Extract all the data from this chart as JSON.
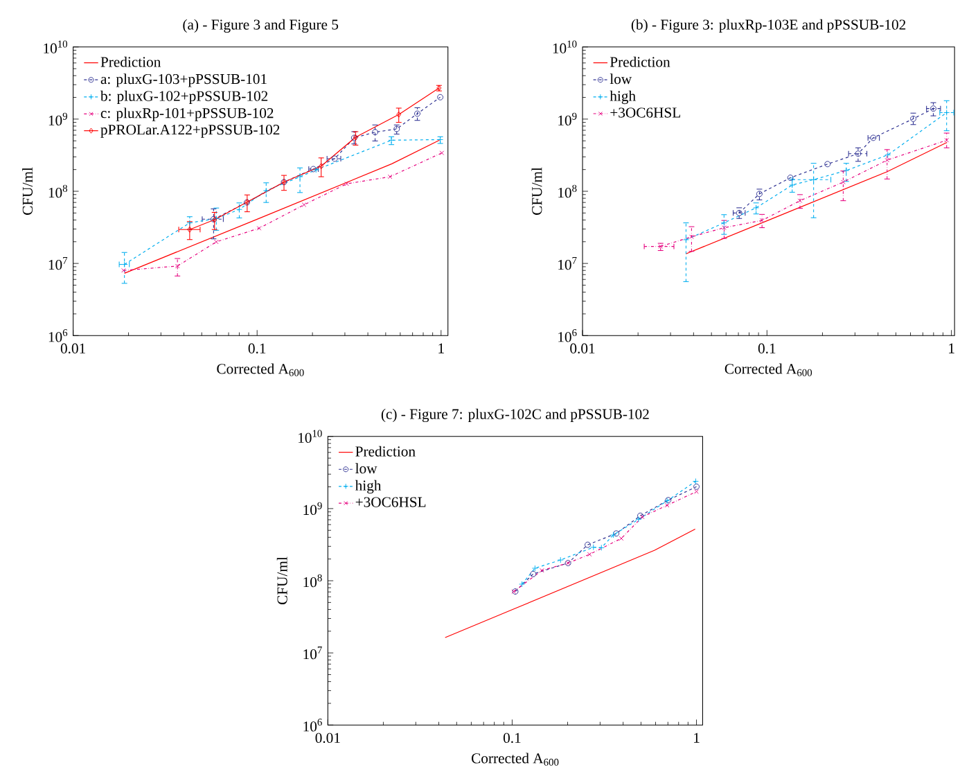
{
  "chart_data": [
    {
      "type": "line",
      "title": "(a) - Figure 3 and Figure 5",
      "xlabel": "Corrected A$_{600}$",
      "ylabel": "CFU/ml",
      "log": "xy",
      "xlim": [
        0.01,
        1.09
      ],
      "ylim": [
        1000000.0,
        10000000000.0
      ],
      "xticks": [
        0.01,
        0.1,
        1
      ],
      "yticks": [
        {
          "value": 1000000.0,
          "label": "10$^{6}$"
        },
        {
          "value": 10000000.0,
          "label": "10$^{7}$"
        },
        {
          "value": 100000000.0,
          "label": "10$^{8}$"
        },
        {
          "value": 1000000000.0,
          "label": "10$^{9}$"
        },
        {
          "value": 10000000000.0,
          "label": "10$^{10}$"
        }
      ],
      "legend": "top left",
      "series": [
        {
          "name": "Prediction",
          "color": "#ff0000",
          "marker": "none",
          "line_style": "solid",
          "x": [
            0.019,
            0.1,
            0.54,
            0.98
          ],
          "values": [
            7300000.0,
            41000000.0,
            240000000.0,
            510000000.0
          ]
        },
        {
          "name": "a: pluxG-103+pPSSUB-101",
          "color": "#2e3192",
          "marker": "circle",
          "line_style": "dashed",
          "x": [
            0.058,
            0.088,
            0.14,
            0.202,
            0.264,
            0.337,
            0.438,
            0.574,
            0.743,
            0.99
          ],
          "values": [
            41000000.0,
            70000000.0,
            134000000.0,
            203000000.0,
            283000000.0,
            550000000.0,
            660000000.0,
            730000000.0,
            1190000000.0,
            2010000000.0
          ],
          "errors": [
            [
              21900000.0,
              57000000.0
            ],
            null,
            null,
            null,
            null,
            [
              453000000.0,
              670000000.0
            ],
            [
              498000000.0,
              830000000.0
            ],
            [
              620000000.0,
              830000000.0
            ],
            [
              960000000.0,
              1440000000.0
            ],
            null
          ],
          "xerrors": [
            [
              0.0503,
              0.0655
            ],
            null,
            null,
            [
              0.191,
              0.215
            ],
            [
              0.24,
              0.285
            ],
            null,
            null,
            null,
            null,
            null
          ]
        },
        {
          "name": "b: pluxG-102+pPSSUB-102",
          "color": "#00aeef",
          "marker": "plus",
          "line_style": "dashed",
          "x": [
            0.019,
            0.043,
            0.06,
            0.08,
            0.112,
            0.171,
            0.209,
            0.537,
            0.99
          ],
          "values": [
            9700000.0,
            36500000.0,
            41800000.0,
            56000000.0,
            102000000.0,
            159000000.0,
            198000000.0,
            510000000.0,
            520000000.0
          ],
          "errors": [
            [
              5300000.0,
              14200000.0
            ],
            [
              29500000.0,
              44400000.0
            ],
            [
              28800000.0,
              58600000.0
            ],
            [
              42700000.0,
              69000000.0
            ],
            [
              70000000.0,
              131000000.0
            ],
            [
              96000000.0,
              211000000.0
            ],
            null,
            [
              443000000.0,
              570000000.0
            ],
            [
              460000000.0,
              570000000.0
            ]
          ],
          "xerrors": [
            [
              0.0178,
              0.0202
            ],
            null,
            null,
            null,
            null,
            null,
            null,
            null,
            null
          ]
        },
        {
          "name": "c: pluxRp-101+pPSSUB-102",
          "color": "#e6007e",
          "marker": "cross",
          "line_style": "dashdot",
          "x": [
            0.0188,
            0.0369,
            0.06,
            0.1025,
            0.18,
            0.307,
            0.528,
            1.01
          ],
          "values": [
            8000000.0,
            9200000.0,
            19900000.0,
            30700000.0,
            65000000.0,
            127000000.0,
            159000000.0,
            340000000.0
          ],
          "errors": [
            null,
            [
              6700000.0,
              11700000.0
            ],
            null,
            null,
            null,
            null,
            null,
            null
          ]
        },
        {
          "name": "pPROLar.A122+pPSSUB-102",
          "color": "#ff0000",
          "marker": "diamond",
          "line_style": "solid",
          "x": [
            0.043,
            0.0587,
            0.0883,
            0.14,
            0.223,
            0.343,
            0.589,
            0.975
          ],
          "values": [
            29500000.0,
            40400000.0,
            71000000.0,
            134000000.0,
            223000000.0,
            560000000.0,
            1160000000.0,
            2700000000.0
          ],
          "errors": [
            [
              21400000.0,
              38000000.0
            ],
            [
              29500000.0,
              51000000.0
            ],
            [
              52000000.0,
              89000000.0
            ],
            [
              103000000.0,
              166000000.0
            ],
            [
              159000000.0,
              290000000.0
            ],
            [
              436000000.0,
              670000000.0
            ],
            [
              900000000.0,
              1420000000.0
            ],
            [
              2460000000.0,
              2930000000.0
            ]
          ],
          "xerrors": [
            [
              0.0375,
              0.049
            ],
            null,
            null,
            null,
            null,
            null,
            null,
            null
          ]
        }
      ]
    },
    {
      "type": "line",
      "title": "(b) - Figure 3: pluxRp-103E and pPSSUB-102",
      "xlabel": "Corrected A$_{600}$",
      "ylabel": "CFU/ml",
      "log": "xy",
      "xlim": [
        0.01,
        1.04
      ],
      "ylim": [
        1000000.0,
        10000000000.0
      ],
      "xticks": [
        0.01,
        0.1,
        1
      ],
      "yticks": [
        {
          "value": 1000000.0,
          "label": "10$^{6}$"
        },
        {
          "value": 10000000.0,
          "label": "10$^{7}$"
        },
        {
          "value": 100000000.0,
          "label": "10$^{8}$"
        },
        {
          "value": 1000000000.0,
          "label": "10$^{9}$"
        },
        {
          "value": 10000000000.0,
          "label": "10$^{10}$"
        }
      ],
      "legend": "top left",
      "series": [
        {
          "name": "Prediction",
          "color": "#ff0000",
          "marker": "none",
          "line_style": "solid",
          "x": [
            0.0364,
            0.1,
            0.446,
            0.946
          ],
          "values": [
            13600000.0,
            39000000.0,
            186000000.0,
            476000000.0
          ]
        },
        {
          "name": "low",
          "color": "#2e3192",
          "marker": "circle",
          "line_style": "dashed",
          "x": [
            0.0707,
            0.091,
            0.134,
            0.213,
            0.312,
            0.377,
            0.621,
            0.798
          ],
          "values": [
            50000000.0,
            92000000.0,
            154000000.0,
            238000000.0,
            332000000.0,
            550000000.0,
            1010000000.0,
            1400000000.0
          ],
          "errors": [
            [
              42000000.0,
              59000000.0
            ],
            [
              76000000.0,
              107000000.0
            ],
            null,
            null,
            [
              260000000.0,
              400000000.0
            ],
            null,
            [
              840000000.0,
              1210000000.0
            ],
            [
              1110000000.0,
              1690000000.0
            ]
          ],
          "xerrors": [
            [
              0.0656,
              0.0762
            ],
            null,
            null,
            null,
            [
              0.277,
              0.348
            ],
            [
              0.353,
              0.407
            ],
            null,
            [
              0.733,
              0.873
            ]
          ]
        },
        {
          "name": "high",
          "color": "#00aeef",
          "marker": "plus",
          "line_style": "dashed",
          "x": [
            0.0364,
            0.0585,
            0.0873,
            0.137,
            0.179,
            0.269,
            0.452,
            0.942
          ],
          "values": [
            21300000.0,
            36500000.0,
            59000000.0,
            122000000.0,
            145000000.0,
            194000000.0,
            319000000.0,
            1230000000.0
          ],
          "errors": [
            [
              5600000.0,
              36500000.0
            ],
            [
              25300000.0,
              47400000.0
            ],
            [
              48500000.0,
              69000000.0
            ],
            [
              97000000.0,
              146000000.0
            ],
            [
              43000000.0,
              244000000.0
            ],
            [
              137000000.0,
              244000000.0
            ],
            null,
            [
              690000000.0,
              1800000000.0
            ]
          ],
          "xerrors": [
            null,
            null,
            null,
            null,
            [
              0.137,
              0.222
            ],
            null,
            null,
            [
              0.865,
              1.03
            ]
          ]
        },
        {
          "name": "+3OC6HSL",
          "color": "#e6007e",
          "marker": "cross",
          "line_style": "dashdot",
          "x": [
            0.0265,
            0.039,
            0.0586,
            0.094,
            0.151,
            0.259,
            0.448,
            0.942
          ],
          "values": [
            17200000.0,
            23400000.0,
            31300000.0,
            39400000.0,
            74000000.0,
            134000000.0,
            270000000.0,
            510000000.0
          ],
          "errors": [
            [
              15100000.0,
              19000000.0
            ],
            [
              14700000.0,
              32300000.0
            ],
            [
              22200000.0,
              39400000.0
            ],
            [
              31300000.0,
              47800000.0
            ],
            [
              58000000.0,
              89800000.0
            ],
            [
              74000000.0,
              191000000.0
            ],
            [
              148000000.0,
              378000000.0
            ],
            [
              400000000.0,
              640000000.0
            ]
          ],
          "xerrors": [
            [
              0.0216,
              0.0313
            ],
            null,
            null,
            null,
            null,
            null,
            null,
            null
          ]
        }
      ]
    },
    {
      "type": "line",
      "title": "(c) - Figure 7: pluxG-102C and pPSSUB-102",
      "xlabel": "Corrected A$_{600}$",
      "ylabel": "CFU/ml",
      "log": "xy",
      "xlim": [
        0.01,
        1.08
      ],
      "ylim": [
        1000000.0,
        10000000000.0
      ],
      "xticks": [
        0.01,
        0.1,
        1
      ],
      "yticks": [
        {
          "value": 1000000.0,
          "label": "10$^{6}$"
        },
        {
          "value": 10000000.0,
          "label": "10$^{7}$"
        },
        {
          "value": 100000000.0,
          "label": "10$^{8}$"
        },
        {
          "value": 1000000000.0,
          "label": "10$^{9}$"
        },
        {
          "value": 10000000000.0,
          "label": "10$^{10}$"
        }
      ],
      "legend": "top left",
      "series": [
        {
          "name": "Prediction",
          "color": "#ff0000",
          "marker": "none",
          "line_style": "solid",
          "x": [
            0.0433,
            0.1,
            0.593,
            0.984
          ],
          "values": [
            16300000.0,
            39700000.0,
            265000000.0,
            520000000.0
          ]
        },
        {
          "name": "low",
          "color": "#2e3192",
          "marker": "circle",
          "line_style": "dashed",
          "x": [
            0.104,
            0.13,
            0.201,
            0.257,
            0.367,
            0.496,
            0.703,
            1.0
          ],
          "values": [
            71000000.0,
            124000000.0,
            176000000.0,
            315000000.0,
            452000000.0,
            796000000.0,
            1310000000.0,
            2010000000.0
          ]
        },
        {
          "name": "high",
          "color": "#00aeef",
          "marker": "plus",
          "line_style": "dashed",
          "x": [
            0.113,
            0.133,
            0.183,
            0.276,
            0.305,
            0.354,
            0.485,
            0.693,
            0.99
          ],
          "values": [
            89600000.0,
            149000000.0,
            194000000.0,
            291000000.0,
            287000000.0,
            431000000.0,
            710000000.0,
            1280000000.0,
            2390000000.0
          ]
        },
        {
          "name": "+3OC6HSL",
          "color": "#e6007e",
          "marker": "cross",
          "line_style": "dashdot",
          "x": [
            0.102,
            0.145,
            0.201,
            0.263,
            0.391,
            0.508,
            0.693,
            1.0
          ],
          "values": [
            70800000.0,
            139000000.0,
            176000000.0,
            232000000.0,
            386000000.0,
            766000000.0,
            1110000000.0,
            1720000000.0
          ]
        }
      ]
    }
  ]
}
